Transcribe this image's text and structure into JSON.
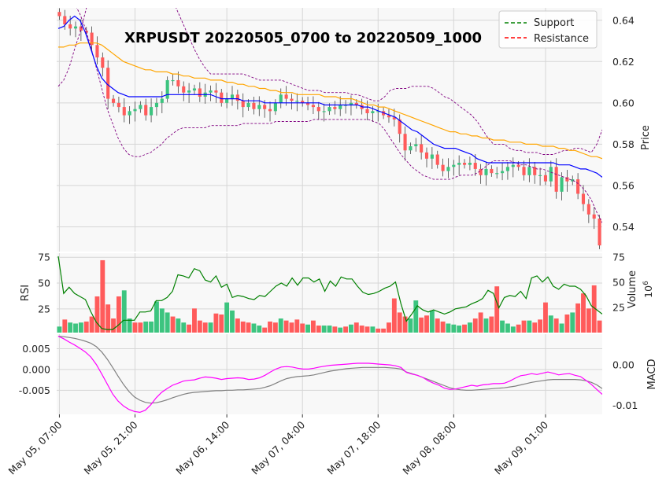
{
  "chart_data": {
    "type": "candlestick",
    "title": "XRPUSDT 20220505_0700 to 20220509_1000",
    "legend": {
      "placement": "top-right",
      "entries": [
        {
          "label": "Support",
          "color": "#008000",
          "style": "dashed"
        },
        {
          "label": "Resistance",
          "color": "#ff0000",
          "style": "dashed"
        }
      ]
    },
    "x_tick_labels": [
      "May 05, 07:00",
      "May 05, 21:00",
      "May 06, 14:00",
      "May 07, 04:00",
      "May 07, 18:00",
      "May 08, 08:00",
      "May 09, 01:00"
    ],
    "x_tick_index": [
      0,
      14,
      31,
      45,
      59,
      73,
      90
    ],
    "price_panel": {
      "ylabel": "Price",
      "ylim": [
        0.528,
        0.646
      ],
      "yticks": [
        "0.54",
        "0.56",
        "0.58",
        "0.60",
        "0.62",
        "0.64"
      ],
      "ytick_values": [
        0.54,
        0.56,
        0.58,
        0.6,
        0.62,
        0.64
      ],
      "close": [
        0.642,
        0.638,
        0.636,
        0.637,
        0.635,
        0.634,
        0.628,
        0.622,
        0.617,
        0.602,
        0.6,
        0.598,
        0.594,
        0.596,
        0.597,
        0.599,
        0.594,
        0.598,
        0.6,
        0.602,
        0.611,
        0.611,
        0.608,
        0.605,
        0.606,
        0.607,
        0.603,
        0.605,
        0.606,
        0.605,
        0.6,
        0.602,
        0.604,
        0.601,
        0.598,
        0.6,
        0.597,
        0.599,
        0.597,
        0.596,
        0.6,
        0.604,
        0.602,
        0.601,
        0.601,
        0.6,
        0.599,
        0.598,
        0.596,
        0.596,
        0.598,
        0.597,
        0.599,
        0.599,
        0.6,
        0.599,
        0.597,
        0.595,
        0.596,
        0.596,
        0.594,
        0.593,
        0.592,
        0.585,
        0.577,
        0.579,
        0.58,
        0.576,
        0.573,
        0.575,
        0.57,
        0.567,
        0.569,
        0.57,
        0.571,
        0.57,
        0.571,
        0.568,
        0.565,
        0.568,
        0.566,
        0.566,
        0.567,
        0.569,
        0.57,
        0.569,
        0.565,
        0.569,
        0.565,
        0.565,
        0.562,
        0.569,
        0.557,
        0.564,
        0.562,
        0.563,
        0.556,
        0.551,
        0.546,
        0.544,
        0.531
      ],
      "sma_blue": [
        0.636,
        0.637,
        0.64,
        0.642,
        0.64,
        0.634,
        0.626,
        0.618,
        0.612,
        0.609,
        0.607,
        0.605,
        0.604,
        0.603,
        0.603,
        0.603,
        0.603,
        0.603,
        0.603,
        0.603,
        0.604,
        0.604,
        0.604,
        0.604,
        0.604,
        0.604,
        0.604,
        0.604,
        0.604,
        0.603,
        0.602,
        0.602,
        0.602,
        0.602,
        0.601,
        0.601,
        0.601,
        0.601,
        0.6,
        0.6,
        0.6,
        0.6,
        0.6,
        0.6,
        0.6,
        0.6,
        0.6,
        0.6,
        0.6,
        0.599,
        0.599,
        0.599,
        0.599,
        0.599,
        0.599,
        0.599,
        0.598,
        0.598,
        0.597,
        0.596,
        0.595,
        0.594,
        0.593,
        0.591,
        0.589,
        0.587,
        0.586,
        0.584,
        0.582,
        0.58,
        0.579,
        0.578,
        0.578,
        0.578,
        0.577,
        0.576,
        0.575,
        0.573,
        0.572,
        0.571,
        0.571,
        0.571,
        0.571,
        0.571,
        0.571,
        0.571,
        0.571,
        0.571,
        0.571,
        0.571,
        0.571,
        0.571,
        0.57,
        0.57,
        0.57,
        0.569,
        0.568,
        0.568,
        0.567,
        0.566,
        0.564
      ],
      "sma_orange": [
        0.627,
        0.627,
        0.628,
        0.628,
        0.629,
        0.629,
        0.629,
        0.629,
        0.628,
        0.626,
        0.624,
        0.622,
        0.62,
        0.619,
        0.618,
        0.617,
        0.616,
        0.616,
        0.615,
        0.615,
        0.615,
        0.614,
        0.614,
        0.613,
        0.613,
        0.612,
        0.612,
        0.612,
        0.611,
        0.611,
        0.611,
        0.61,
        0.61,
        0.609,
        0.609,
        0.608,
        0.608,
        0.607,
        0.607,
        0.606,
        0.606,
        0.605,
        0.605,
        0.605,
        0.604,
        0.604,
        0.604,
        0.604,
        0.604,
        0.603,
        0.603,
        0.603,
        0.602,
        0.602,
        0.602,
        0.601,
        0.6,
        0.599,
        0.599,
        0.598,
        0.598,
        0.597,
        0.596,
        0.595,
        0.594,
        0.593,
        0.592,
        0.591,
        0.59,
        0.589,
        0.588,
        0.587,
        0.586,
        0.586,
        0.585,
        0.585,
        0.584,
        0.584,
        0.583,
        0.583,
        0.582,
        0.582,
        0.582,
        0.581,
        0.581,
        0.581,
        0.58,
        0.58,
        0.58,
        0.579,
        0.579,
        0.579,
        0.578,
        0.578,
        0.577,
        0.577,
        0.576,
        0.575,
        0.574,
        0.574,
        0.573
      ],
      "bb_upper": [
        0.608,
        0.611,
        0.617,
        0.626,
        0.634,
        0.644,
        0.655,
        0.664,
        0.672,
        0.675,
        0.676,
        0.676,
        0.676,
        0.675,
        0.674,
        0.672,
        0.67,
        0.668,
        0.664,
        0.66,
        0.656,
        0.65,
        0.644,
        0.638,
        0.632,
        0.626,
        0.621,
        0.617,
        0.614,
        0.614,
        0.614,
        0.614,
        0.614,
        0.614,
        0.614,
        0.613,
        0.612,
        0.611,
        0.611,
        0.611,
        0.611,
        0.611,
        0.61,
        0.609,
        0.608,
        0.607,
        0.606,
        0.606,
        0.606,
        0.605,
        0.605,
        0.605,
        0.605,
        0.605,
        0.604,
        0.604,
        0.603,
        0.602,
        0.601,
        0.601,
        0.603,
        0.606,
        0.607,
        0.607,
        0.607,
        0.608,
        0.608,
        0.608,
        0.608,
        0.607,
        0.605,
        0.603,
        0.602,
        0.6,
        0.598,
        0.596,
        0.594,
        0.591,
        0.587,
        0.583,
        0.58,
        0.58,
        0.58,
        0.578,
        0.577,
        0.577,
        0.576,
        0.576,
        0.576,
        0.575,
        0.575,
        0.575,
        0.576,
        0.577,
        0.577,
        0.578,
        0.578,
        0.577,
        0.576,
        0.58,
        0.587
      ],
      "bb_lower": [
        0.657,
        0.655,
        0.652,
        0.648,
        0.643,
        0.636,
        0.627,
        0.617,
        0.607,
        0.597,
        0.59,
        0.583,
        0.578,
        0.575,
        0.574,
        0.574,
        0.575,
        0.576,
        0.578,
        0.58,
        0.583,
        0.585,
        0.587,
        0.588,
        0.588,
        0.588,
        0.588,
        0.588,
        0.589,
        0.589,
        0.589,
        0.589,
        0.589,
        0.589,
        0.59,
        0.59,
        0.59,
        0.59,
        0.59,
        0.59,
        0.591,
        0.591,
        0.591,
        0.591,
        0.591,
        0.591,
        0.591,
        0.592,
        0.592,
        0.592,
        0.592,
        0.592,
        0.592,
        0.592,
        0.592,
        0.592,
        0.592,
        0.592,
        0.591,
        0.59,
        0.587,
        0.583,
        0.579,
        0.575,
        0.572,
        0.569,
        0.567,
        0.565,
        0.564,
        0.563,
        0.563,
        0.563,
        0.563,
        0.564,
        0.565,
        0.565,
        0.565,
        0.566,
        0.568,
        0.57,
        0.572,
        0.572,
        0.572,
        0.572,
        0.571,
        0.57,
        0.57,
        0.569,
        0.568,
        0.568,
        0.567,
        0.566,
        0.565,
        0.564,
        0.563,
        0.562,
        0.56,
        0.557,
        0.553,
        0.547,
        0.542
      ]
    },
    "rsi_panel": {
      "ylabel": "RSI",
      "ylim": [
        2,
        79
      ],
      "yticks": [
        "25",
        "50",
        "75"
      ],
      "ytick_values": [
        25,
        50,
        75
      ],
      "rsi": [
        76,
        40,
        46,
        40,
        37,
        34,
        22,
        12,
        6,
        5,
        5,
        9,
        14,
        14,
        14,
        22,
        22,
        23,
        33,
        33,
        36,
        42,
        58,
        57,
        55,
        64,
        62,
        53,
        51,
        57,
        46,
        49,
        36,
        38,
        37,
        35,
        34,
        38,
        37,
        42,
        47,
        50,
        47,
        55,
        48,
        55,
        55,
        51,
        54,
        42,
        52,
        47,
        56,
        54,
        54,
        47,
        41,
        39,
        40,
        42,
        45,
        47,
        51,
        30,
        13,
        20,
        28,
        24,
        22,
        24,
        22,
        20,
        22,
        25,
        26,
        27,
        30,
        32,
        35,
        43,
        40,
        26,
        36,
        38,
        37,
        42,
        35,
        55,
        57,
        51,
        56,
        47,
        44,
        49,
        47,
        47,
        44,
        38,
        28,
        24,
        20
      ],
      "volume_axis_label": "Volume",
      "volume_axis_exponent": "10^6",
      "volume_ylim": [
        0,
        79
      ],
      "volume_ticks": [
        "25",
        "50",
        "75"
      ],
      "volume_tick_values": [
        25,
        50,
        75
      ],
      "volume": [
        6,
        13,
        10,
        9,
        10,
        11,
        16,
        36,
        72,
        28,
        14,
        36,
        42,
        14,
        10,
        10,
        11,
        11,
        31,
        24,
        20,
        16,
        14,
        10,
        8,
        24,
        12,
        10,
        10,
        19,
        18,
        30,
        22,
        14,
        11,
        10,
        9,
        7,
        5,
        11,
        10,
        14,
        12,
        10,
        13,
        9,
        8,
        12,
        7,
        7,
        7,
        6,
        5,
        6,
        8,
        10,
        7,
        6,
        6,
        4,
        4,
        10,
        34,
        20,
        16,
        14,
        32,
        15,
        17,
        22,
        14,
        11,
        9,
        8,
        7,
        8,
        10,
        14,
        20,
        14,
        16,
        46,
        12,
        9,
        6,
        8,
        12,
        12,
        10,
        13,
        30,
        17,
        14,
        9,
        18,
        20,
        29,
        39,
        24,
        47,
        12
      ],
      "volume_up": [
        true,
        false,
        true,
        true,
        true,
        false,
        false,
        false,
        false,
        false,
        false,
        false,
        true,
        true,
        false,
        false,
        true,
        true,
        true,
        true,
        true,
        false,
        true,
        true,
        false,
        false,
        false,
        false,
        true,
        false,
        false,
        true,
        true,
        false,
        false,
        false,
        true,
        true,
        false,
        false,
        false,
        true,
        false,
        false,
        false,
        false,
        true,
        false,
        false,
        true,
        true,
        false,
        true,
        false,
        true,
        false,
        false,
        false,
        true,
        false,
        false,
        false,
        false,
        false,
        false,
        true,
        true,
        false,
        false,
        true,
        false,
        false,
        true,
        true,
        true,
        false,
        true,
        false,
        false,
        true,
        false,
        false,
        true,
        true,
        true,
        false,
        false,
        true,
        false,
        false,
        false,
        true,
        false,
        true,
        false,
        true,
        false,
        false,
        false,
        false,
        false
      ]
    },
    "macd_panel": {
      "ylabel": "MACD",
      "left_ylim": [
        -0.0108,
        0.0085
      ],
      "left_yticks": [
        "-0.005",
        "0.000",
        "0.005"
      ],
      "left_ytick_values": [
        -0.005,
        0.0,
        0.005
      ],
      "right_ylim": [
        -0.0122,
        0.0075
      ],
      "right_yticks": [
        "-0.01",
        "0.00"
      ],
      "right_ytick_values": [
        -0.01,
        0.0
      ],
      "macd_magenta": [
        0.008,
        0.0074,
        0.0066,
        0.0059,
        0.0051,
        0.0042,
        0.003,
        0.0012,
        -0.0011,
        -0.0035,
        -0.0059,
        -0.0076,
        -0.0088,
        -0.0096,
        -0.0101,
        -0.0103,
        -0.0098,
        -0.0085,
        -0.0068,
        -0.0055,
        -0.0046,
        -0.0038,
        -0.0033,
        -0.0028,
        -0.0026,
        -0.0025,
        -0.0021,
        -0.0018,
        -0.0019,
        -0.0021,
        -0.0024,
        -0.0022,
        -0.0021,
        -0.002,
        -0.0021,
        -0.0024,
        -0.0023,
        -0.002,
        -0.0014,
        -0.0006,
        0.0001,
        0.0006,
        0.0007,
        0.0006,
        0.0003,
        0.0001,
        0.0001,
        0.0003,
        0.0006,
        0.0008,
        0.001,
        0.0011,
        0.0012,
        0.0013,
        0.0014,
        0.0015,
        0.0015,
        0.0015,
        0.0014,
        0.0013,
        0.0012,
        0.0011,
        0.0009,
        0.0005,
        -0.0007,
        -0.0011,
        -0.0014,
        -0.0019,
        -0.0027,
        -0.0033,
        -0.0038,
        -0.0045,
        -0.0048,
        -0.0047,
        -0.0044,
        -0.0041,
        -0.0038,
        -0.004,
        -0.0037,
        -0.0036,
        -0.0034,
        -0.0034,
        -0.0033,
        -0.0028,
        -0.0021,
        -0.0015,
        -0.0013,
        -0.001,
        -0.0012,
        -0.0009,
        -0.0006,
        -0.0009,
        -0.0013,
        -0.0011,
        -0.001,
        -0.0014,
        -0.0017,
        -0.0026,
        -0.0036,
        -0.0048,
        -0.006
      ],
      "signal_gray": [
        0.008,
        0.0079,
        0.0077,
        0.0075,
        0.0072,
        0.0068,
        0.0063,
        0.0055,
        0.0042,
        0.0025,
        0.0005,
        -0.0016,
        -0.0036,
        -0.0053,
        -0.0066,
        -0.0074,
        -0.0079,
        -0.0081,
        -0.008,
        -0.0077,
        -0.0073,
        -0.0068,
        -0.0064,
        -0.006,
        -0.0057,
        -0.0055,
        -0.0054,
        -0.0053,
        -0.0052,
        -0.0051,
        -0.0051,
        -0.005,
        -0.005,
        -0.0049,
        -0.0049,
        -0.0048,
        -0.0047,
        -0.0046,
        -0.0043,
        -0.0039,
        -0.0033,
        -0.0027,
        -0.0022,
        -0.0019,
        -0.0017,
        -0.0016,
        -0.0015,
        -0.0013,
        -0.001,
        -0.0007,
        -0.0004,
        -0.0002,
        0.0,
        0.0002,
        0.0003,
        0.0004,
        0.0005,
        0.0005,
        0.0005,
        0.0005,
        0.0005,
        0.0004,
        0.0003,
        0.0001,
        -0.0006,
        -0.001,
        -0.0014,
        -0.0019,
        -0.0024,
        -0.0029,
        -0.0034,
        -0.0039,
        -0.0044,
        -0.0047,
        -0.0049,
        -0.005,
        -0.005,
        -0.0049,
        -0.0048,
        -0.0047,
        -0.0046,
        -0.0045,
        -0.0044,
        -0.0042,
        -0.004,
        -0.0037,
        -0.0034,
        -0.0031,
        -0.0029,
        -0.0027,
        -0.0025,
        -0.0024,
        -0.0024,
        -0.0024,
        -0.0024,
        -0.0024,
        -0.0025,
        -0.0027,
        -0.0031,
        -0.0037,
        -0.0046
      ]
    },
    "colors": {
      "up": "#3cc47f",
      "down": "#ff5b5b",
      "sma_fast": "#0000ff",
      "sma_slow": "#ffa500",
      "bollinger": "#800080",
      "rsi": "#008000",
      "macd": "#ff00ff",
      "signal": "#808080",
      "panel_bg": "#f8f8f8",
      "grid": "#d6d6d6"
    }
  }
}
